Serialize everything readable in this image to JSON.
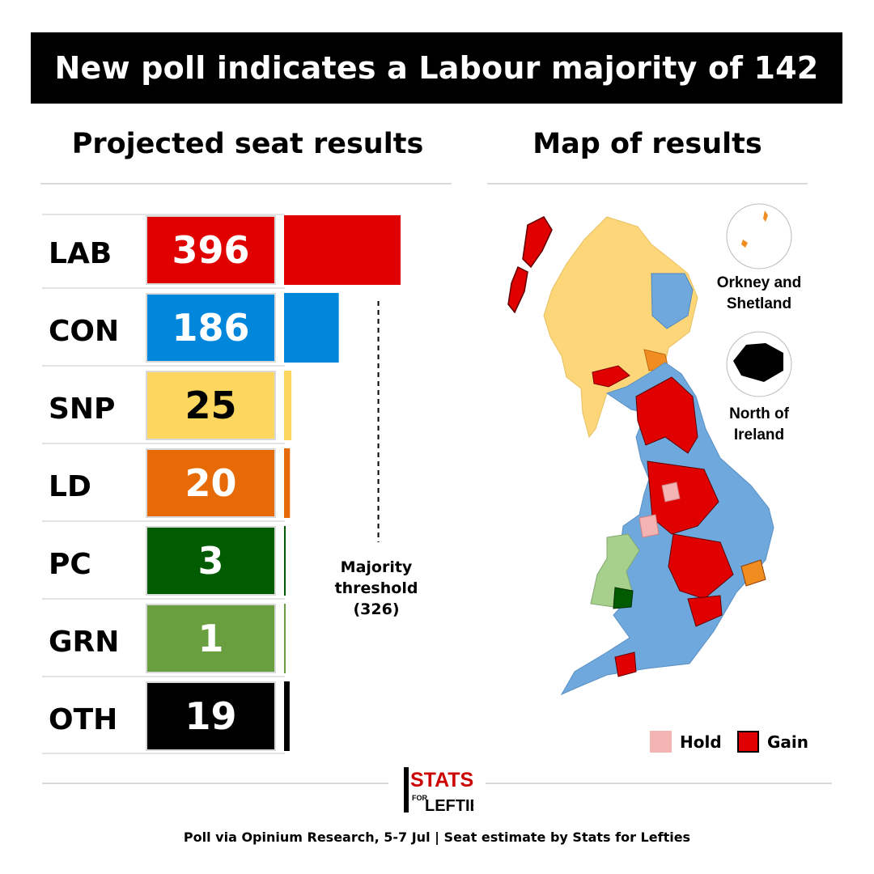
{
  "title": "New poll indicates a Labour majority of 142",
  "left_heading": "Projected seat results",
  "right_heading": "Map of results",
  "chart_data": {
    "type": "bar",
    "categories": [
      "LAB",
      "CON",
      "SNP",
      "LD",
      "PC",
      "GRN",
      "OTH"
    ],
    "values": [
      396,
      186,
      25,
      20,
      3,
      1,
      19
    ],
    "colors": [
      "#e00000",
      "#0087dc",
      "#fdd65f",
      "#e66a05",
      "#005b01",
      "#6a9f40",
      "#000000"
    ],
    "value_text_colors": [
      "#ffffff",
      "#ffffff",
      "#000000",
      "#ffffff",
      "#ffffff",
      "#ffffff",
      "#ffffff"
    ],
    "reference_line": {
      "value": 326,
      "label_lines": [
        "Majority",
        "threshold",
        "(326)"
      ]
    }
  },
  "map": {
    "inset_orkney_label_lines": [
      "Orkney and",
      "Shetland"
    ],
    "inset_ni_label_lines": [
      "North of",
      "Ireland"
    ],
    "legend": [
      {
        "label": "Hold",
        "color": "#f4b4b4"
      },
      {
        "label": "Gain",
        "color": "#e00000"
      }
    ]
  },
  "logo": {
    "line1": "STATS",
    "line2": "FOR",
    "line3": "LEFTIES"
  },
  "footer": "Poll via Opinium Research, 5-7 Jul | Seat estimate by Stats for Lefties"
}
